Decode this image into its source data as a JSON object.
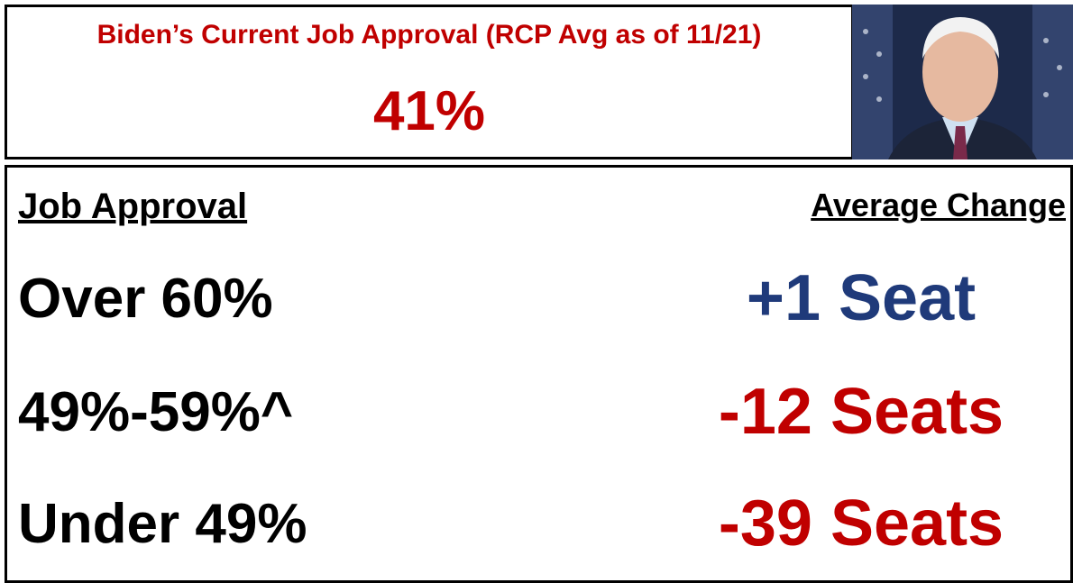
{
  "header": {
    "title": "Biden’s Current Job Approval (RCP Avg as of 11/21)",
    "value": "41%",
    "color": "#c00000"
  },
  "table": {
    "headers": [
      "Job Approval",
      "Average Change"
    ],
    "rows": [
      {
        "label": "Over 60%",
        "change": "+1 Seat",
        "color": "#1f3a7a"
      },
      {
        "label": "49%-59%^",
        "change": "-12 Seats",
        "color": "#c00000"
      },
      {
        "label": "Under 49%",
        "change": "-39 Seats",
        "color": "#c00000"
      }
    ]
  }
}
